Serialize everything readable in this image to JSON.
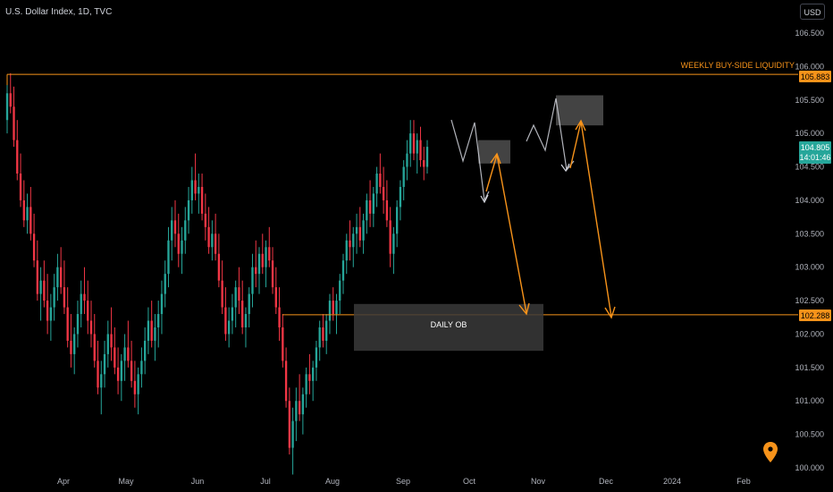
{
  "header": {
    "title": "U.S. Dollar Index, 1D, TVC",
    "currency": "USD"
  },
  "annotations": {
    "liquidity_label": "WEEKLY BUY-SIDE LIQUIDITY",
    "liquidity_price": "105.883",
    "ob_label": "DAILY OB",
    "ob_price": "102.288",
    "current_price": "104.805",
    "countdown": "14:01:46"
  },
  "colors": {
    "up": "#26a69a",
    "down": "#f23645",
    "accent": "#f7931a",
    "path": "#d1d4dc",
    "zone": "#434343"
  },
  "chart_data": {
    "type": "candlestick",
    "title": "U.S. Dollar Index, 1D, TVC",
    "ylim": [
      100.0,
      106.7
    ],
    "y_ticks": [
      "100.000",
      "100.500",
      "101.000",
      "101.500",
      "102.000",
      "102.500",
      "103.000",
      "103.500",
      "104.000",
      "104.500",
      "105.000",
      "105.500",
      "106.000",
      "106.500"
    ],
    "x_ticks": [
      "Apr",
      "May",
      "Jun",
      "Jul",
      "Aug",
      "Sep",
      "Oct",
      "Nov",
      "Dec",
      "2024",
      "Feb"
    ],
    "levels": [
      {
        "label": "WEEKLY BUY-SIDE LIQUIDITY",
        "value": 105.883
      },
      {
        "label": "DAILY OB",
        "value": 102.288
      }
    ],
    "current": 104.805,
    "ohlc": [
      [
        105.2,
        105.8,
        105.0,
        105.6
      ],
      [
        105.6,
        105.9,
        105.3,
        105.4
      ],
      [
        105.4,
        105.7,
        104.8,
        104.9
      ],
      [
        104.9,
        105.2,
        104.3,
        104.4
      ],
      [
        104.4,
        104.7,
        103.9,
        104.0
      ],
      [
        104.0,
        104.3,
        103.6,
        103.7
      ],
      [
        103.7,
        104.1,
        103.5,
        103.9
      ],
      [
        103.9,
        104.2,
        103.4,
        103.5
      ],
      [
        103.5,
        103.8,
        103.0,
        103.1
      ],
      [
        103.1,
        103.4,
        102.5,
        102.6
      ],
      [
        102.6,
        103.0,
        102.2,
        102.8
      ],
      [
        102.8,
        103.1,
        102.4,
        102.5
      ],
      [
        102.5,
        102.9,
        102.0,
        102.2
      ],
      [
        102.2,
        102.6,
        101.9,
        102.4
      ],
      [
        102.4,
        102.9,
        102.2,
        102.7
      ],
      [
        102.7,
        103.2,
        102.5,
        103.0
      ],
      [
        103.0,
        103.3,
        102.6,
        102.7
      ],
      [
        102.7,
        103.1,
        102.3,
        102.4
      ],
      [
        102.4,
        102.7,
        101.8,
        101.9
      ],
      [
        101.9,
        102.3,
        101.5,
        101.7
      ],
      [
        101.7,
        102.1,
        101.4,
        102.0
      ],
      [
        102.0,
        102.5,
        101.8,
        102.3
      ],
      [
        102.3,
        102.8,
        102.1,
        102.6
      ],
      [
        102.6,
        103.0,
        102.3,
        102.5
      ],
      [
        102.5,
        102.8,
        102.0,
        102.2
      ],
      [
        102.2,
        102.5,
        101.8,
        102.0
      ],
      [
        102.0,
        102.3,
        101.5,
        101.6
      ],
      [
        101.6,
        101.9,
        101.1,
        101.2
      ],
      [
        101.2,
        101.6,
        100.8,
        101.4
      ],
      [
        101.4,
        101.9,
        101.2,
        101.7
      ],
      [
        101.7,
        102.2,
        101.5,
        102.0
      ],
      [
        102.0,
        102.4,
        101.6,
        101.8
      ],
      [
        101.8,
        102.1,
        101.4,
        101.5
      ],
      [
        101.5,
        101.8,
        101.1,
        101.3
      ],
      [
        101.3,
        101.7,
        101.0,
        101.6
      ],
      [
        101.6,
        102.0,
        101.3,
        101.8
      ],
      [
        101.8,
        102.2,
        101.5,
        101.6
      ],
      [
        101.6,
        101.9,
        101.2,
        101.3
      ],
      [
        101.3,
        101.6,
        100.9,
        101.1
      ],
      [
        101.1,
        101.5,
        100.8,
        101.4
      ],
      [
        101.4,
        101.8,
        101.2,
        101.6
      ],
      [
        101.6,
        102.1,
        101.4,
        101.9
      ],
      [
        101.9,
        102.4,
        101.7,
        102.2
      ],
      [
        102.2,
        102.5,
        101.8,
        101.9
      ],
      [
        101.9,
        102.3,
        101.6,
        102.1
      ],
      [
        102.1,
        102.5,
        101.8,
        102.3
      ],
      [
        102.3,
        102.8,
        102.0,
        102.6
      ],
      [
        102.6,
        103.1,
        102.4,
        102.9
      ],
      [
        102.9,
        103.6,
        102.7,
        103.4
      ],
      [
        103.4,
        103.9,
        103.1,
        103.7
      ],
      [
        103.7,
        104.0,
        103.3,
        103.5
      ],
      [
        103.5,
        103.8,
        103.0,
        103.2
      ],
      [
        103.2,
        103.6,
        102.9,
        103.4
      ],
      [
        103.4,
        103.9,
        103.2,
        103.7
      ],
      [
        103.7,
        104.2,
        103.5,
        104.0
      ],
      [
        104.0,
        104.5,
        103.8,
        104.3
      ],
      [
        104.3,
        104.7,
        104.0,
        104.1
      ],
      [
        104.1,
        104.4,
        103.8,
        104.2
      ],
      [
        104.2,
        104.4,
        103.7,
        103.8
      ],
      [
        103.8,
        104.1,
        103.4,
        103.6
      ],
      [
        103.6,
        103.9,
        103.2,
        103.3
      ],
      [
        103.3,
        103.7,
        103.1,
        103.5
      ],
      [
        103.5,
        103.8,
        103.1,
        103.2
      ],
      [
        103.2,
        103.5,
        102.7,
        102.8
      ],
      [
        102.8,
        103.1,
        102.3,
        102.4
      ],
      [
        102.4,
        102.7,
        101.9,
        102.0
      ],
      [
        102.0,
        102.4,
        101.8,
        102.2
      ],
      [
        102.2,
        102.6,
        102.0,
        102.4
      ],
      [
        102.4,
        102.8,
        102.1,
        102.7
      ],
      [
        102.7,
        103.0,
        102.3,
        102.5
      ],
      [
        102.5,
        102.8,
        102.0,
        102.1
      ],
      [
        102.1,
        102.4,
        101.8,
        102.3
      ],
      [
        102.3,
        102.7,
        102.1,
        102.6
      ],
      [
        102.6,
        103.2,
        102.4,
        103.0
      ],
      [
        103.0,
        103.4,
        102.7,
        102.9
      ],
      [
        102.9,
        103.3,
        102.6,
        103.2
      ],
      [
        103.2,
        103.5,
        102.9,
        103.0
      ],
      [
        103.0,
        103.4,
        102.7,
        103.3
      ],
      [
        103.3,
        103.6,
        103.0,
        103.1
      ],
      [
        103.1,
        103.3,
        102.6,
        102.7
      ],
      [
        102.7,
        103.0,
        102.3,
        102.4
      ],
      [
        102.4,
        102.7,
        101.9,
        102.1
      ],
      [
        102.1,
        102.3,
        101.5,
        101.6
      ],
      [
        101.6,
        101.8,
        100.9,
        101.0
      ],
      [
        101.0,
        101.2,
        100.2,
        100.3
      ],
      [
        100.3,
        100.9,
        99.9,
        100.7
      ],
      [
        100.7,
        101.2,
        100.4,
        101.0
      ],
      [
        101.0,
        101.4,
        100.7,
        100.8
      ],
      [
        100.8,
        101.2,
        100.5,
        101.1
      ],
      [
        101.1,
        101.5,
        100.9,
        101.4
      ],
      [
        101.4,
        101.7,
        101.1,
        101.3
      ],
      [
        101.3,
        101.6,
        101.0,
        101.5
      ],
      [
        101.5,
        101.9,
        101.3,
        101.8
      ],
      [
        101.8,
        102.2,
        101.6,
        102.1
      ],
      [
        102.1,
        102.3,
        101.8,
        101.9
      ],
      [
        101.9,
        102.3,
        101.7,
        102.2
      ],
      [
        102.2,
        102.6,
        102.0,
        102.5
      ],
      [
        102.5,
        102.7,
        102.2,
        102.3
      ],
      [
        102.3,
        102.6,
        102.0,
        102.5
      ],
      [
        102.5,
        102.9,
        102.3,
        102.8
      ],
      [
        102.8,
        103.2,
        102.6,
        103.1
      ],
      [
        103.1,
        103.5,
        102.9,
        103.4
      ],
      [
        103.4,
        103.7,
        103.1,
        103.3
      ],
      [
        103.3,
        103.6,
        103.0,
        103.5
      ],
      [
        103.5,
        103.8,
        103.2,
        103.6
      ],
      [
        103.6,
        103.9,
        103.3,
        103.4
      ],
      [
        103.4,
        103.8,
        103.2,
        103.7
      ],
      [
        103.7,
        104.1,
        103.5,
        104.0
      ],
      [
        104.0,
        104.3,
        103.6,
        103.8
      ],
      [
        103.8,
        104.2,
        103.6,
        104.1
      ],
      [
        104.1,
        104.5,
        103.9,
        104.4
      ],
      [
        104.4,
        104.7,
        104.1,
        104.2
      ],
      [
        104.2,
        104.5,
        103.8,
        104.0
      ],
      [
        104.0,
        104.3,
        103.6,
        103.7
      ],
      [
        103.7,
        103.9,
        103.0,
        103.2
      ],
      [
        103.2,
        103.6,
        102.9,
        103.5
      ],
      [
        103.5,
        104.0,
        103.3,
        103.9
      ],
      [
        103.9,
        104.3,
        103.7,
        104.2
      ],
      [
        104.2,
        104.6,
        104.0,
        104.5
      ],
      [
        104.5,
        104.9,
        104.3,
        104.7
      ],
      [
        104.7,
        105.2,
        104.5,
        105.0
      ],
      [
        105.0,
        105.2,
        104.6,
        104.7
      ],
      [
        104.7,
        105.0,
        104.4,
        104.9
      ],
      [
        104.9,
        105.1,
        104.5,
        104.6
      ],
      [
        104.6,
        104.8,
        104.3,
        104.5
      ],
      [
        104.5,
        104.9,
        104.4,
        104.8
      ]
    ],
    "projection_1": [
      [
        505.0,
        134.0
      ],
      [
        518.0,
        180.0
      ],
      [
        531.0,
        137.0
      ],
      [
        542.0,
        224.0
      ],
      [
        547.0,
        214.0
      ]
    ],
    "projection_2": [
      [
        589.0,
        158.0
      ],
      [
        597.0,
        140.0
      ],
      [
        610.0,
        168.0
      ],
      [
        622.0,
        110.0
      ],
      [
        634.0,
        190.0
      ],
      [
        642.0,
        180.0
      ]
    ],
    "zones": [
      {
        "top": 104.9,
        "bottom": 104.55
      },
      {
        "top": 105.57,
        "bottom": 105.12
      },
      {
        "top": 102.45,
        "bottom": 101.75
      }
    ]
  }
}
